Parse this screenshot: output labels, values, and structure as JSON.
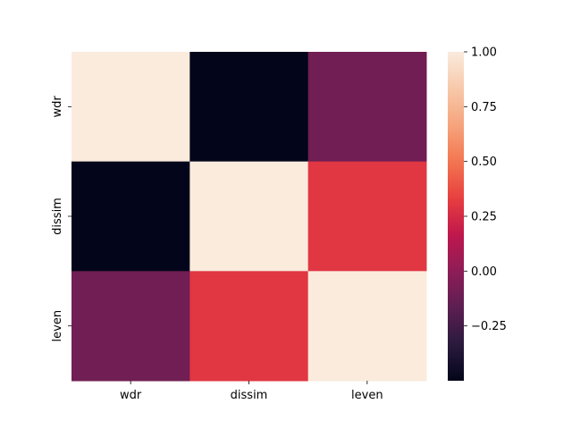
{
  "chart_data": {
    "type": "heatmap",
    "title": "",
    "xlabel": "",
    "ylabel": "",
    "x_categories": [
      "wdr",
      "dissim",
      "leven"
    ],
    "y_categories": [
      "wdr",
      "dissim",
      "leven"
    ],
    "values": [
      [
        1.0,
        -0.5,
        -0.1
      ],
      [
        -0.5,
        1.0,
        0.3
      ],
      [
        -0.1,
        0.3,
        1.0
      ]
    ],
    "vmin": -0.5,
    "vmax": 1.0,
    "colormap": "rocket",
    "colorbar": {
      "ticks": [
        -0.25,
        0.0,
        0.25,
        0.5,
        0.75,
        1.0
      ],
      "tick_labels": [
        "−0.25",
        "0.00",
        "0.25",
        "0.50",
        "0.75",
        "1.00"
      ]
    },
    "colors": {
      "rocket_stops": [
        "#03051a",
        "#2a1a3d",
        "#5c1e51",
        "#8e1d57",
        "#c0174d",
        "#e83f3f",
        "#f37651",
        "#f6a47d",
        "#f7c9aa",
        "#faebdd"
      ]
    }
  }
}
